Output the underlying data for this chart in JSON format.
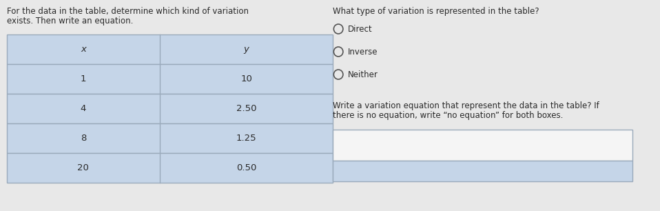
{
  "left_instruction_line1": "For the data in the table, determine which kind of variation",
  "left_instruction_line2": "exists. Then write an equation.",
  "right_question": "What type of variation is represented in the table?",
  "table_headers": [
    "x",
    "y"
  ],
  "table_data": [
    [
      "1",
      "10"
    ],
    [
      "4",
      "2.50"
    ],
    [
      "8",
      "1.25"
    ],
    [
      "20",
      "0.50"
    ]
  ],
  "radio_options": [
    "Direct",
    "Inverse",
    "Neither"
  ],
  "write_instruction_line1": "Write a variation equation that represent the data in the table? If",
  "write_instruction_line2": "there is no equation, write “no equation” for both boxes.",
  "table_bg_color": "#c5d5e8",
  "table_border_color": "#9aaabb",
  "background_color": "#e8e8e8",
  "text_color": "#2a2a2a",
  "answer_box_top_color": "#f5f5f5",
  "answer_box_bottom_color": "#c5d5e8",
  "answer_box_border_color": "#9aaabb",
  "font_size_main": 8.5,
  "font_size_table": 9.5,
  "font_size_radio": 8.5,
  "font_size_write": 8.5
}
